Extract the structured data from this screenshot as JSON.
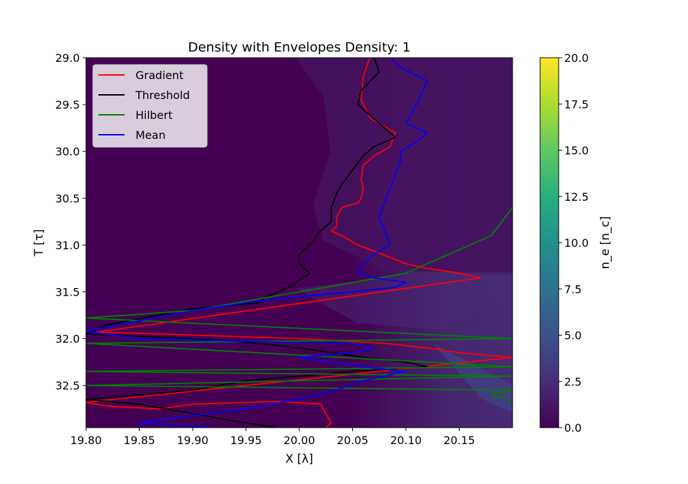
{
  "chart_data": {
    "type": "heatmap",
    "title": "Density with Envelopes Density: 1",
    "xlabel": "X [λ]",
    "ylabel": "T [τ]",
    "xlim": [
      19.8,
      20.2
    ],
    "ylim": [
      32.95,
      29.0
    ],
    "x_ticks": [
      "19.80",
      "19.85",
      "19.90",
      "19.95",
      "20.00",
      "20.05",
      "20.10",
      "20.15"
    ],
    "y_ticks": [
      "29.0",
      "29.5",
      "30.0",
      "30.5",
      "31.0",
      "31.5",
      "32.0",
      "32.5"
    ],
    "colorbar": {
      "label": "n_e [n_c]",
      "range": [
        0.0,
        20.0
      ],
      "ticks": [
        "0.0",
        "2.5",
        "5.0",
        "7.5",
        "10.0",
        "12.5",
        "15.0",
        "17.5",
        "20.0"
      ],
      "colormap": "viridis"
    },
    "legend": {
      "placement": "upper-left"
    },
    "series": [
      {
        "name": "Gradient",
        "color": "#ff0000",
        "x": [
          20.066,
          20.06,
          20.058,
          20.067,
          20.09,
          20.085,
          20.07,
          20.06,
          20.058,
          20.06,
          20.058,
          20.055,
          20.04,
          20.035,
          20.035,
          20.03,
          20.04,
          20.055,
          20.078,
          20.1,
          20.12,
          20.15,
          20.17,
          19.81,
          19.87,
          20.0,
          20.08,
          20.12,
          20.15,
          20.2,
          19.8,
          19.82,
          19.87,
          19.9,
          19.98,
          20.02,
          20.025,
          20.03,
          20.025
        ],
        "y": [
          29.0,
          29.2,
          29.45,
          29.65,
          29.8,
          29.95,
          30.05,
          30.15,
          30.3,
          30.4,
          30.5,
          30.55,
          30.6,
          30.7,
          30.8,
          30.85,
          30.9,
          31.0,
          31.1,
          31.2,
          31.25,
          31.3,
          31.35,
          31.93,
          31.95,
          32.0,
          32.05,
          32.1,
          32.15,
          32.2,
          32.68,
          32.72,
          32.75,
          32.7,
          32.67,
          32.7,
          32.8,
          32.9,
          32.95
        ]
      },
      {
        "name": "Threshold",
        "color": "#000000",
        "x": [
          20.07,
          20.075,
          20.058,
          20.055,
          20.075,
          20.09,
          20.07,
          20.06,
          20.05,
          20.04,
          20.035,
          20.03,
          20.03,
          20.02,
          20.01,
          20.0,
          20.0,
          20.01,
          19.99,
          19.97,
          19.96,
          19.9,
          19.82,
          19.8,
          19.9,
          19.96,
          20.0,
          20.03,
          20.06,
          20.1,
          20.12,
          20.05,
          19.95,
          19.9,
          19.8,
          19.85,
          19.9,
          19.95,
          19.98
        ],
        "y": [
          29.0,
          29.15,
          29.35,
          29.5,
          29.7,
          29.85,
          29.95,
          30.05,
          30.2,
          30.35,
          30.45,
          30.6,
          30.75,
          30.85,
          31.0,
          31.1,
          31.2,
          31.3,
          31.45,
          31.55,
          31.62,
          31.68,
          31.85,
          31.95,
          32.0,
          32.05,
          32.1,
          32.15,
          32.2,
          32.25,
          32.3,
          32.35,
          32.45,
          32.55,
          32.65,
          32.7,
          32.8,
          32.9,
          32.95
        ]
      },
      {
        "name": "Hilbert",
        "color": "#008000",
        "x": [
          20.2,
          20.2,
          20.2,
          20.2,
          20.2,
          20.18,
          20.16,
          20.14,
          20.12,
          20.1,
          20.05,
          20.0,
          19.95,
          19.9,
          19.8,
          20.2,
          19.8,
          20.2,
          19.8,
          20.2,
          19.8,
          20.2,
          20.18,
          20.2
        ],
        "y": [
          29.1,
          29.5,
          29.8,
          30.2,
          30.6,
          30.9,
          31.0,
          31.1,
          31.2,
          31.3,
          31.4,
          31.5,
          31.6,
          31.7,
          31.78,
          32.0,
          32.05,
          32.3,
          32.35,
          32.4,
          32.5,
          32.55,
          32.6,
          32.67
        ]
      },
      {
        "name": "Mean",
        "color": "#0000ff",
        "x": [
          20.085,
          20.095,
          20.12,
          20.11,
          20.1,
          20.12,
          20.11,
          20.095,
          20.095,
          20.09,
          20.085,
          20.08,
          20.075,
          20.08,
          20.085,
          20.07,
          20.06,
          20.055,
          20.07,
          20.1,
          20.09,
          20.05,
          20.0,
          19.96,
          19.9,
          19.8,
          19.85,
          19.95,
          20.05,
          20.07,
          20.05,
          20.0,
          20.06,
          20.1,
          20.06,
          20.02,
          19.95,
          19.88,
          19.85,
          19.92
        ],
        "y": [
          29.0,
          29.1,
          29.25,
          29.5,
          29.7,
          29.8,
          29.9,
          30.0,
          30.1,
          30.25,
          30.4,
          30.55,
          30.7,
          30.85,
          31.0,
          31.1,
          31.2,
          31.3,
          31.35,
          31.4,
          31.45,
          31.5,
          31.55,
          31.6,
          31.7,
          31.92,
          32.0,
          32.03,
          32.05,
          32.1,
          32.15,
          32.2,
          32.3,
          32.35,
          32.45,
          32.6,
          32.75,
          32.85,
          32.9,
          32.95
        ]
      }
    ]
  }
}
